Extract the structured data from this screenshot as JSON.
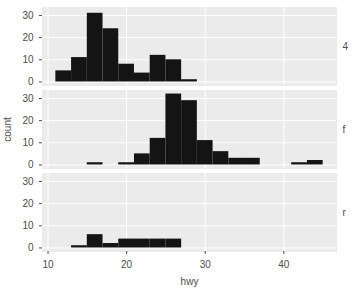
{
  "chart_data": {
    "type": "histogram",
    "x_label": "hwy",
    "y_label": "count",
    "bins": [
      11,
      13,
      15,
      17,
      19,
      21,
      23,
      25,
      27,
      29,
      31,
      33,
      35,
      37,
      39,
      41,
      43,
      45
    ],
    "panels": [
      {
        "title": "4",
        "values": [
          5,
          11,
          31,
          24,
          8,
          4,
          12,
          10,
          1,
          0,
          0,
          0,
          0,
          0,
          0,
          0,
          0
        ]
      },
      {
        "title": "f",
        "values": [
          0,
          0,
          1,
          0,
          1,
          5,
          12,
          32,
          29,
          11,
          6,
          3,
          3,
          0,
          0,
          1,
          2
        ]
      },
      {
        "title": "r",
        "values": [
          0,
          1,
          6,
          2,
          4,
          4,
          4,
          4,
          0,
          0,
          0,
          0,
          0,
          0,
          0,
          0,
          0
        ]
      }
    ],
    "color": "#141414",
    "xlim": [
      9.3,
      46.7
    ],
    "xticks": [
      10,
      20,
      30,
      40
    ],
    "ylim": [
      -1.6,
      33.6
    ],
    "yticks": [
      0,
      10,
      20,
      30
    ],
    "grid": true
  }
}
